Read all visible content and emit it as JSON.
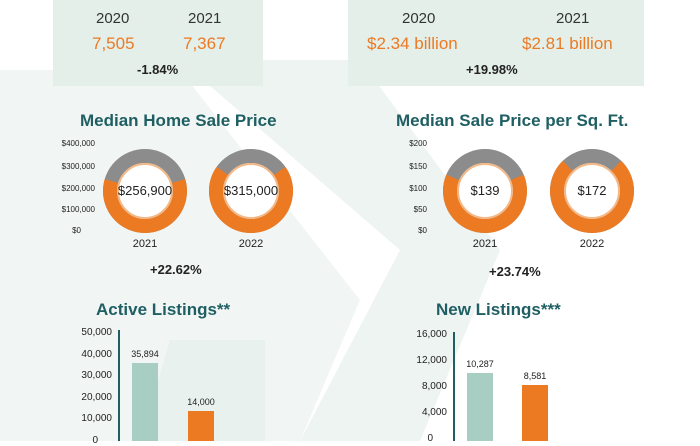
{
  "top_left": {
    "years": [
      "2020",
      "2021"
    ],
    "values": [
      "7,505",
      "7,367"
    ],
    "change": "-1.84%"
  },
  "top_right": {
    "years": [
      "2020",
      "2021"
    ],
    "values": [
      "$2.34 billion",
      "$2.81 billion"
    ],
    "change": "+19.98%"
  },
  "colors": {
    "orange": "#ec7a23",
    "gray": "#8c8c8c",
    "teal": "#1f5f63",
    "mint": "#a8cec3",
    "panel": "#e4efea"
  },
  "chart_data": [
    {
      "type": "pie",
      "title": "Median Home Sale Price",
      "y_ticks": [
        "$400,000",
        "$300,000",
        "$200,000",
        "$100,000",
        "$0"
      ],
      "ylim": [
        0,
        400000
      ],
      "categories": [
        "2021",
        "2022"
      ],
      "values": [
        256900,
        315000
      ],
      "value_labels": [
        "$256,900",
        "$315,000"
      ],
      "change": "+22.62%"
    },
    {
      "type": "pie",
      "title": "Median Sale Price per Sq. Ft.",
      "y_ticks": [
        "$200",
        "$150",
        "$100",
        "$50",
        "$0"
      ],
      "ylim": [
        0,
        200
      ],
      "categories": [
        "2021",
        "2022"
      ],
      "values": [
        139,
        172
      ],
      "value_labels": [
        "$139",
        "$172"
      ],
      "change": "+23.74%"
    },
    {
      "type": "bar",
      "title": "Active Listings**",
      "y_ticks": [
        "50,000",
        "40,000",
        "30,000",
        "20,000",
        "10,000",
        "0"
      ],
      "ylim": [
        0,
        50000
      ],
      "values": [
        35894,
        14000
      ],
      "value_labels": [
        "35,894",
        "14,000"
      ]
    },
    {
      "type": "bar",
      "title": "New Listings***",
      "y_ticks": [
        "16,000",
        "12,000",
        "8,000",
        "4,000",
        "0"
      ],
      "ylim": [
        0,
        16000
      ],
      "values": [
        10287,
        8581
      ],
      "value_labels": [
        "10,287",
        "8,581"
      ]
    }
  ]
}
